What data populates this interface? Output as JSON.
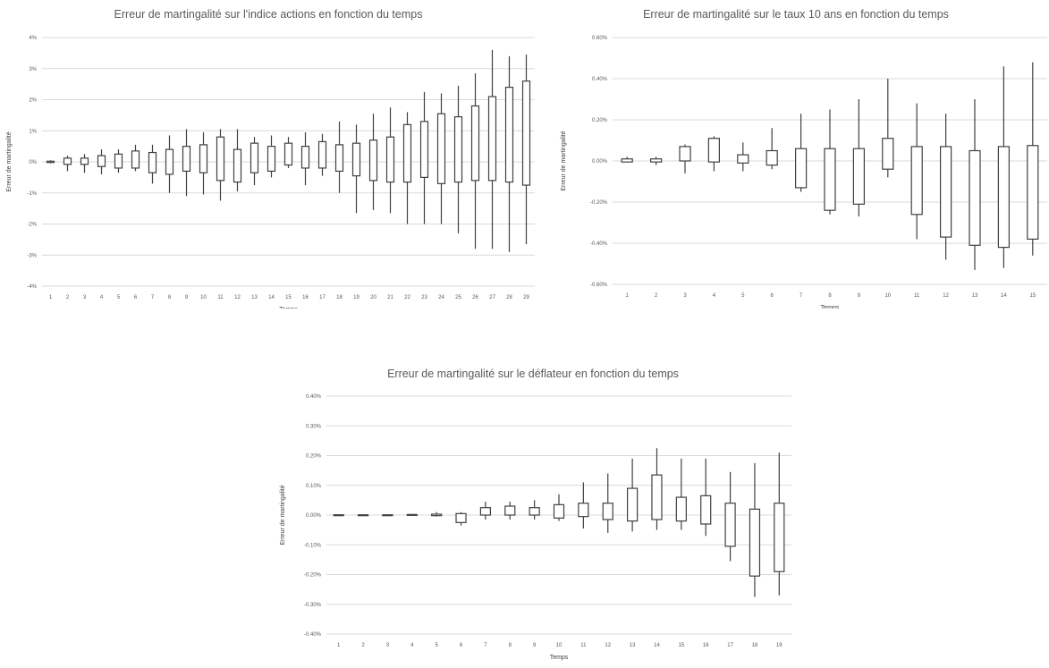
{
  "chart_data": [
    {
      "type": "candlestick",
      "title": "Erreur de martingalité sur l'indice actions en fonction du temps",
      "xlabel": "Temps",
      "ylabel": "Erreur de martingalité",
      "ylim": [
        -4,
        4
      ],
      "yticks": [
        4,
        3,
        2,
        1,
        0,
        -1,
        -2,
        -3,
        -4
      ],
      "yticklabels": [
        "4%",
        "3%",
        "2%",
        "1%",
        "0%",
        "-1%",
        "-2%",
        "-3%",
        "-4%"
      ],
      "grid": true,
      "categories": [
        "1",
        "2",
        "3",
        "4",
        "5",
        "6",
        "7",
        "8",
        "9",
        "10",
        "11",
        "12",
        "13",
        "14",
        "15",
        "16",
        "17",
        "18",
        "19",
        "20",
        "21",
        "22",
        "23",
        "24",
        "25",
        "26",
        "27",
        "28",
        "29"
      ],
      "box_low": [
        -0.02,
        -0.08,
        -0.08,
        -0.15,
        -0.2,
        -0.2,
        -0.35,
        -0.4,
        -0.3,
        -0.35,
        -0.6,
        -0.65,
        -0.35,
        -0.3,
        -0.1,
        -0.2,
        -0.2,
        -0.3,
        -0.45,
        -0.6,
        -0.65,
        -0.65,
        -0.5,
        -0.7,
        -0.65,
        -0.6,
        -0.6,
        -0.65,
        -0.75
      ],
      "box_high": [
        0.02,
        0.12,
        0.12,
        0.2,
        0.25,
        0.35,
        0.3,
        0.4,
        0.5,
        0.55,
        0.8,
        0.4,
        0.6,
        0.5,
        0.6,
        0.5,
        0.65,
        0.55,
        0.6,
        0.7,
        0.8,
        1.2,
        1.3,
        1.55,
        1.45,
        1.8,
        2.1,
        2.4,
        2.6
      ],
      "whisker_low": [
        -0.05,
        -0.3,
        -0.35,
        -0.4,
        -0.35,
        -0.3,
        -0.7,
        -1.0,
        -1.1,
        -1.05,
        -1.25,
        -0.95,
        -0.75,
        -0.5,
        -0.2,
        -0.75,
        -0.45,
        -1.0,
        -1.65,
        -1.55,
        -1.65,
        -2.0,
        -2.0,
        -2.0,
        -2.3,
        -2.8,
        -2.8,
        -2.9,
        -2.65
      ],
      "whisker_high": [
        0.05,
        0.2,
        0.25,
        0.4,
        0.4,
        0.55,
        0.55,
        0.85,
        1.05,
        0.95,
        1.05,
        1.05,
        0.8,
        0.85,
        0.8,
        0.95,
        0.9,
        1.3,
        1.2,
        1.55,
        1.75,
        1.6,
        2.25,
        2.2,
        2.45,
        2.85,
        3.6,
        3.4,
        3.45
      ]
    },
    {
      "type": "candlestick",
      "title": "Erreur de martingalité sur le taux 10 ans en fonction du temps",
      "xlabel": "Temps",
      "ylabel": "Erreur de martingalité",
      "ylim": [
        -0.6,
        0.6
      ],
      "yticks": [
        0.6,
        0.4,
        0.2,
        0,
        -0.2,
        -0.4,
        -0.6
      ],
      "yticklabels": [
        "0.60%",
        "0.40%",
        "0.20%",
        "0.00%",
        "-0.20%",
        "-0.40%",
        "-0.60%"
      ],
      "grid": true,
      "categories": [
        "1",
        "2",
        "3",
        "4",
        "5",
        "6",
        "7",
        "8",
        "9",
        "10",
        "11",
        "12",
        "13",
        "14",
        "15"
      ],
      "box_low": [
        -0.005,
        -0.005,
        0.0,
        -0.005,
        -0.01,
        -0.02,
        -0.13,
        -0.24,
        -0.21,
        -0.04,
        -0.26,
        -0.37,
        -0.41,
        -0.42,
        -0.38
      ],
      "box_high": [
        0.01,
        0.01,
        0.07,
        0.11,
        0.03,
        0.05,
        0.06,
        0.06,
        0.06,
        0.11,
        0.07,
        0.07,
        0.05,
        0.07,
        0.075
      ],
      "whisker_low": [
        -0.005,
        -0.02,
        -0.06,
        -0.05,
        -0.05,
        -0.04,
        -0.15,
        -0.26,
        -0.27,
        -0.08,
        -0.38,
        -0.48,
        -0.53,
        -0.52,
        -0.46
      ],
      "whisker_high": [
        0.02,
        0.02,
        0.08,
        0.12,
        0.09,
        0.16,
        0.23,
        0.25,
        0.3,
        0.4,
        0.28,
        0.23,
        0.3,
        0.46,
        0.48
      ]
    },
    {
      "type": "candlestick",
      "title": "Erreur de martingalité sur le déflateur en fonction du temps",
      "xlabel": "Temps",
      "ylabel": "Erreur de martingalité",
      "ylim": [
        -0.4,
        0.4
      ],
      "yticks": [
        0.4,
        0.3,
        0.2,
        0.1,
        0,
        -0.1,
        -0.2,
        -0.3,
        -0.4
      ],
      "yticklabels": [
        "0.40%",
        "0.30%",
        "0.20%",
        "0.10%",
        "0.00%",
        "-0.10%",
        "-0.20%",
        "-0.30%",
        "-0.40%"
      ],
      "grid": true,
      "categories": [
        "1",
        "2",
        "3",
        "4",
        "5",
        "6",
        "7",
        "8",
        "9",
        "10",
        "11",
        "12",
        "13",
        "14",
        "15",
        "16",
        "17",
        "18",
        "19"
      ],
      "box_low": [
        -0.001,
        -0.001,
        -0.001,
        -0.001,
        -0.002,
        -0.025,
        0.0,
        0.0,
        0.0,
        -0.01,
        -0.005,
        -0.015,
        -0.02,
        -0.015,
        -0.02,
        -0.03,
        -0.105,
        -0.205,
        -0.19
      ],
      "box_high": [
        0.001,
        0.001,
        0.001,
        0.002,
        0.003,
        0.005,
        0.025,
        0.03,
        0.025,
        0.035,
        0.04,
        0.04,
        0.09,
        0.135,
        0.06,
        0.065,
        0.04,
        0.02,
        0.04
      ],
      "whisker_low": [
        -0.002,
        -0.002,
        -0.002,
        -0.003,
        -0.005,
        -0.035,
        -0.015,
        -0.015,
        -0.015,
        -0.02,
        -0.045,
        -0.06,
        -0.055,
        -0.05,
        -0.05,
        -0.07,
        -0.155,
        -0.275,
        -0.27
      ],
      "whisker_high": [
        0.002,
        0.002,
        0.002,
        0.003,
        0.01,
        0.01,
        0.045,
        0.045,
        0.05,
        0.07,
        0.11,
        0.14,
        0.19,
        0.225,
        0.19,
        0.19,
        0.145,
        0.175,
        0.21
      ]
    }
  ]
}
